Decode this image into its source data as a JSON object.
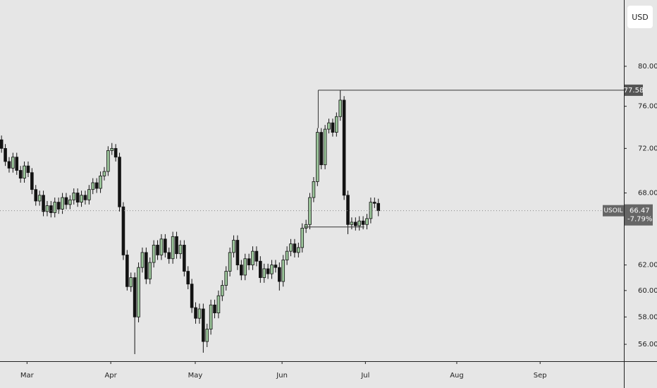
{
  "chart_data": {
    "type": "candlestick",
    "symbol": "USOIL",
    "currency": "USD",
    "log_scale": true,
    "grid": false,
    "up_color": "#9cc69b",
    "down_color": "#131313",
    "ylim": [
      54.8,
      87.1
    ],
    "yticks": [
      {
        "value": 56,
        "label": "56.00"
      },
      {
        "value": 58,
        "label": "58.00"
      },
      {
        "value": 60,
        "label": "60.00"
      },
      {
        "value": 62,
        "label": "62.00"
      },
      {
        "value": 68,
        "label": "68.00"
      },
      {
        "value": 72,
        "label": "72.00"
      },
      {
        "value": 76,
        "label": "76.00"
      },
      {
        "value": 80,
        "label": "80.00"
      }
    ],
    "xlim": [
      -0.4,
      163.5
    ],
    "xticks": [
      {
        "value": 6.7,
        "label": "Mar"
      },
      {
        "value": 28.7,
        "label": "Apr"
      },
      {
        "value": 50.9,
        "label": "May"
      },
      {
        "value": 73.7,
        "label": "Jun"
      },
      {
        "value": 95.6,
        "label": "Jul"
      },
      {
        "value": 119.6,
        "label": "Aug"
      },
      {
        "value": 141.5,
        "label": "Sep"
      }
    ],
    "open": [
      72.8,
      72.0,
      70.8,
      70.2,
      71.2,
      70.0,
      69.3,
      70.4,
      69.8,
      68.3,
      67.3,
      67.8,
      66.4,
      66.9,
      66.3,
      67.2,
      66.6,
      67.6,
      67.0,
      67.4,
      68.0,
      67.2,
      67.8,
      67.4,
      68.3,
      68.9,
      68.4,
      69.5,
      69.9,
      71.8,
      72.0,
      71.2,
      66.8,
      62.8,
      60.3,
      61.0,
      58.0,
      61.8,
      63.0,
      60.9,
      62.2,
      63.6,
      62.8,
      64.1,
      63.0,
      62.5,
      64.3,
      62.9,
      63.6,
      61.5,
      60.5,
      58.7,
      57.9,
      58.6,
      56.2,
      57.1,
      58.9,
      58.3,
      59.6,
      60.4,
      61.5,
      63.0,
      64.0,
      62.0,
      61.2,
      62.5,
      62.0,
      63.1,
      62.3,
      61.0,
      61.7,
      61.3,
      62.0,
      61.8,
      60.7,
      62.4,
      63.1,
      63.7,
      63.0,
      63.4,
      65.0,
      65.3,
      67.6,
      69.0,
      73.5,
      70.5,
      73.8,
      74.4,
      73.5,
      75.0,
      76.6,
      67.8,
      65.3,
      65.5,
      65.2,
      65.6,
      65.3,
      65.8,
      67.2,
      67.1
    ],
    "high": [
      73.2,
      72.4,
      71.2,
      71.6,
      71.6,
      70.4,
      70.8,
      70.8,
      70.2,
      68.7,
      68.2,
      68.2,
      67.3,
      67.3,
      67.6,
      67.6,
      68.0,
      68.0,
      67.8,
      68.4,
      68.4,
      68.2,
      68.2,
      68.7,
      69.3,
      69.3,
      69.9,
      70.3,
      72.2,
      72.5,
      72.4,
      71.6,
      67.2,
      63.2,
      61.4,
      61.4,
      62.2,
      63.4,
      63.4,
      62.6,
      64.0,
      64.0,
      64.5,
      64.5,
      63.4,
      64.7,
      64.7,
      64.0,
      64.0,
      61.9,
      60.9,
      59.1,
      59.0,
      59.0,
      57.5,
      59.3,
      59.3,
      60.0,
      60.8,
      61.9,
      63.4,
      64.4,
      64.4,
      62.4,
      62.9,
      62.9,
      63.5,
      63.5,
      62.7,
      62.1,
      62.1,
      62.4,
      62.4,
      62.2,
      62.8,
      63.5,
      64.1,
      64.1,
      63.8,
      65.4,
      65.7,
      68.0,
      69.4,
      73.9,
      73.9,
      74.2,
      74.8,
      74.8,
      75.4,
      77.6,
      77.0,
      68.2,
      65.9,
      65.9,
      66.0,
      66.0,
      66.2,
      67.6,
      67.6,
      67.5
    ],
    "low": [
      71.6,
      70.4,
      69.8,
      69.8,
      69.6,
      68.9,
      68.9,
      69.4,
      67.9,
      66.9,
      66.9,
      66.0,
      66.0,
      65.9,
      65.9,
      66.2,
      66.2,
      66.6,
      66.6,
      67.0,
      66.8,
      66.8,
      67.0,
      67.0,
      67.9,
      68.0,
      68.0,
      69.1,
      69.5,
      71.4,
      70.8,
      66.4,
      62.4,
      60.0,
      59.9,
      55.3,
      57.6,
      61.4,
      60.5,
      60.5,
      61.8,
      62.4,
      62.4,
      62.6,
      62.1,
      62.1,
      62.5,
      62.5,
      61.1,
      60.1,
      58.3,
      57.5,
      57.5,
      55.4,
      55.8,
      56.7,
      57.9,
      57.9,
      59.2,
      60.0,
      61.1,
      62.6,
      61.6,
      60.8,
      60.8,
      61.6,
      61.6,
      61.9,
      60.6,
      60.6,
      60.9,
      60.9,
      61.4,
      60.0,
      60.3,
      62.0,
      62.7,
      62.6,
      62.6,
      63.0,
      64.6,
      64.9,
      67.2,
      68.6,
      70.1,
      70.1,
      73.4,
      73.1,
      73.1,
      74.6,
      67.4,
      64.5,
      64.9,
      64.8,
      64.8,
      64.9,
      64.9,
      65.4,
      66.7,
      66.0
    ],
    "close": [
      72.0,
      70.8,
      70.2,
      71.2,
      70.0,
      69.3,
      70.4,
      69.8,
      68.3,
      67.3,
      67.8,
      66.4,
      66.9,
      66.3,
      67.2,
      66.6,
      67.6,
      67.0,
      67.4,
      68.0,
      67.2,
      67.8,
      67.4,
      68.3,
      68.9,
      68.4,
      69.5,
      69.9,
      71.8,
      72.0,
      71.2,
      66.8,
      62.8,
      60.3,
      61.0,
      58.0,
      61.8,
      63.0,
      60.9,
      62.2,
      63.6,
      62.8,
      64.1,
      63.0,
      62.5,
      64.3,
      62.9,
      63.6,
      61.5,
      60.5,
      58.7,
      57.9,
      58.6,
      56.2,
      57.1,
      58.9,
      58.3,
      59.6,
      60.4,
      61.5,
      63.0,
      64.0,
      62.0,
      61.2,
      62.5,
      62.0,
      63.1,
      62.3,
      61.0,
      61.7,
      61.3,
      62.0,
      61.8,
      60.7,
      62.4,
      63.1,
      63.7,
      63.0,
      63.4,
      65.0,
      65.3,
      67.6,
      69.0,
      73.5,
      70.5,
      73.8,
      74.4,
      73.5,
      75.0,
      76.6,
      67.8,
      65.3,
      65.5,
      65.2,
      65.6,
      65.3,
      65.8,
      67.2,
      67.1,
      66.47
    ],
    "resistance": {
      "price": 77.58,
      "x": 83.2
    },
    "support": {
      "price": 65.1,
      "x": [
        79.5,
        95.3
      ]
    },
    "last": {
      "price": 66.47,
      "change": {
        "value": -7.79,
        "label": "-7.79%"
      }
    }
  }
}
